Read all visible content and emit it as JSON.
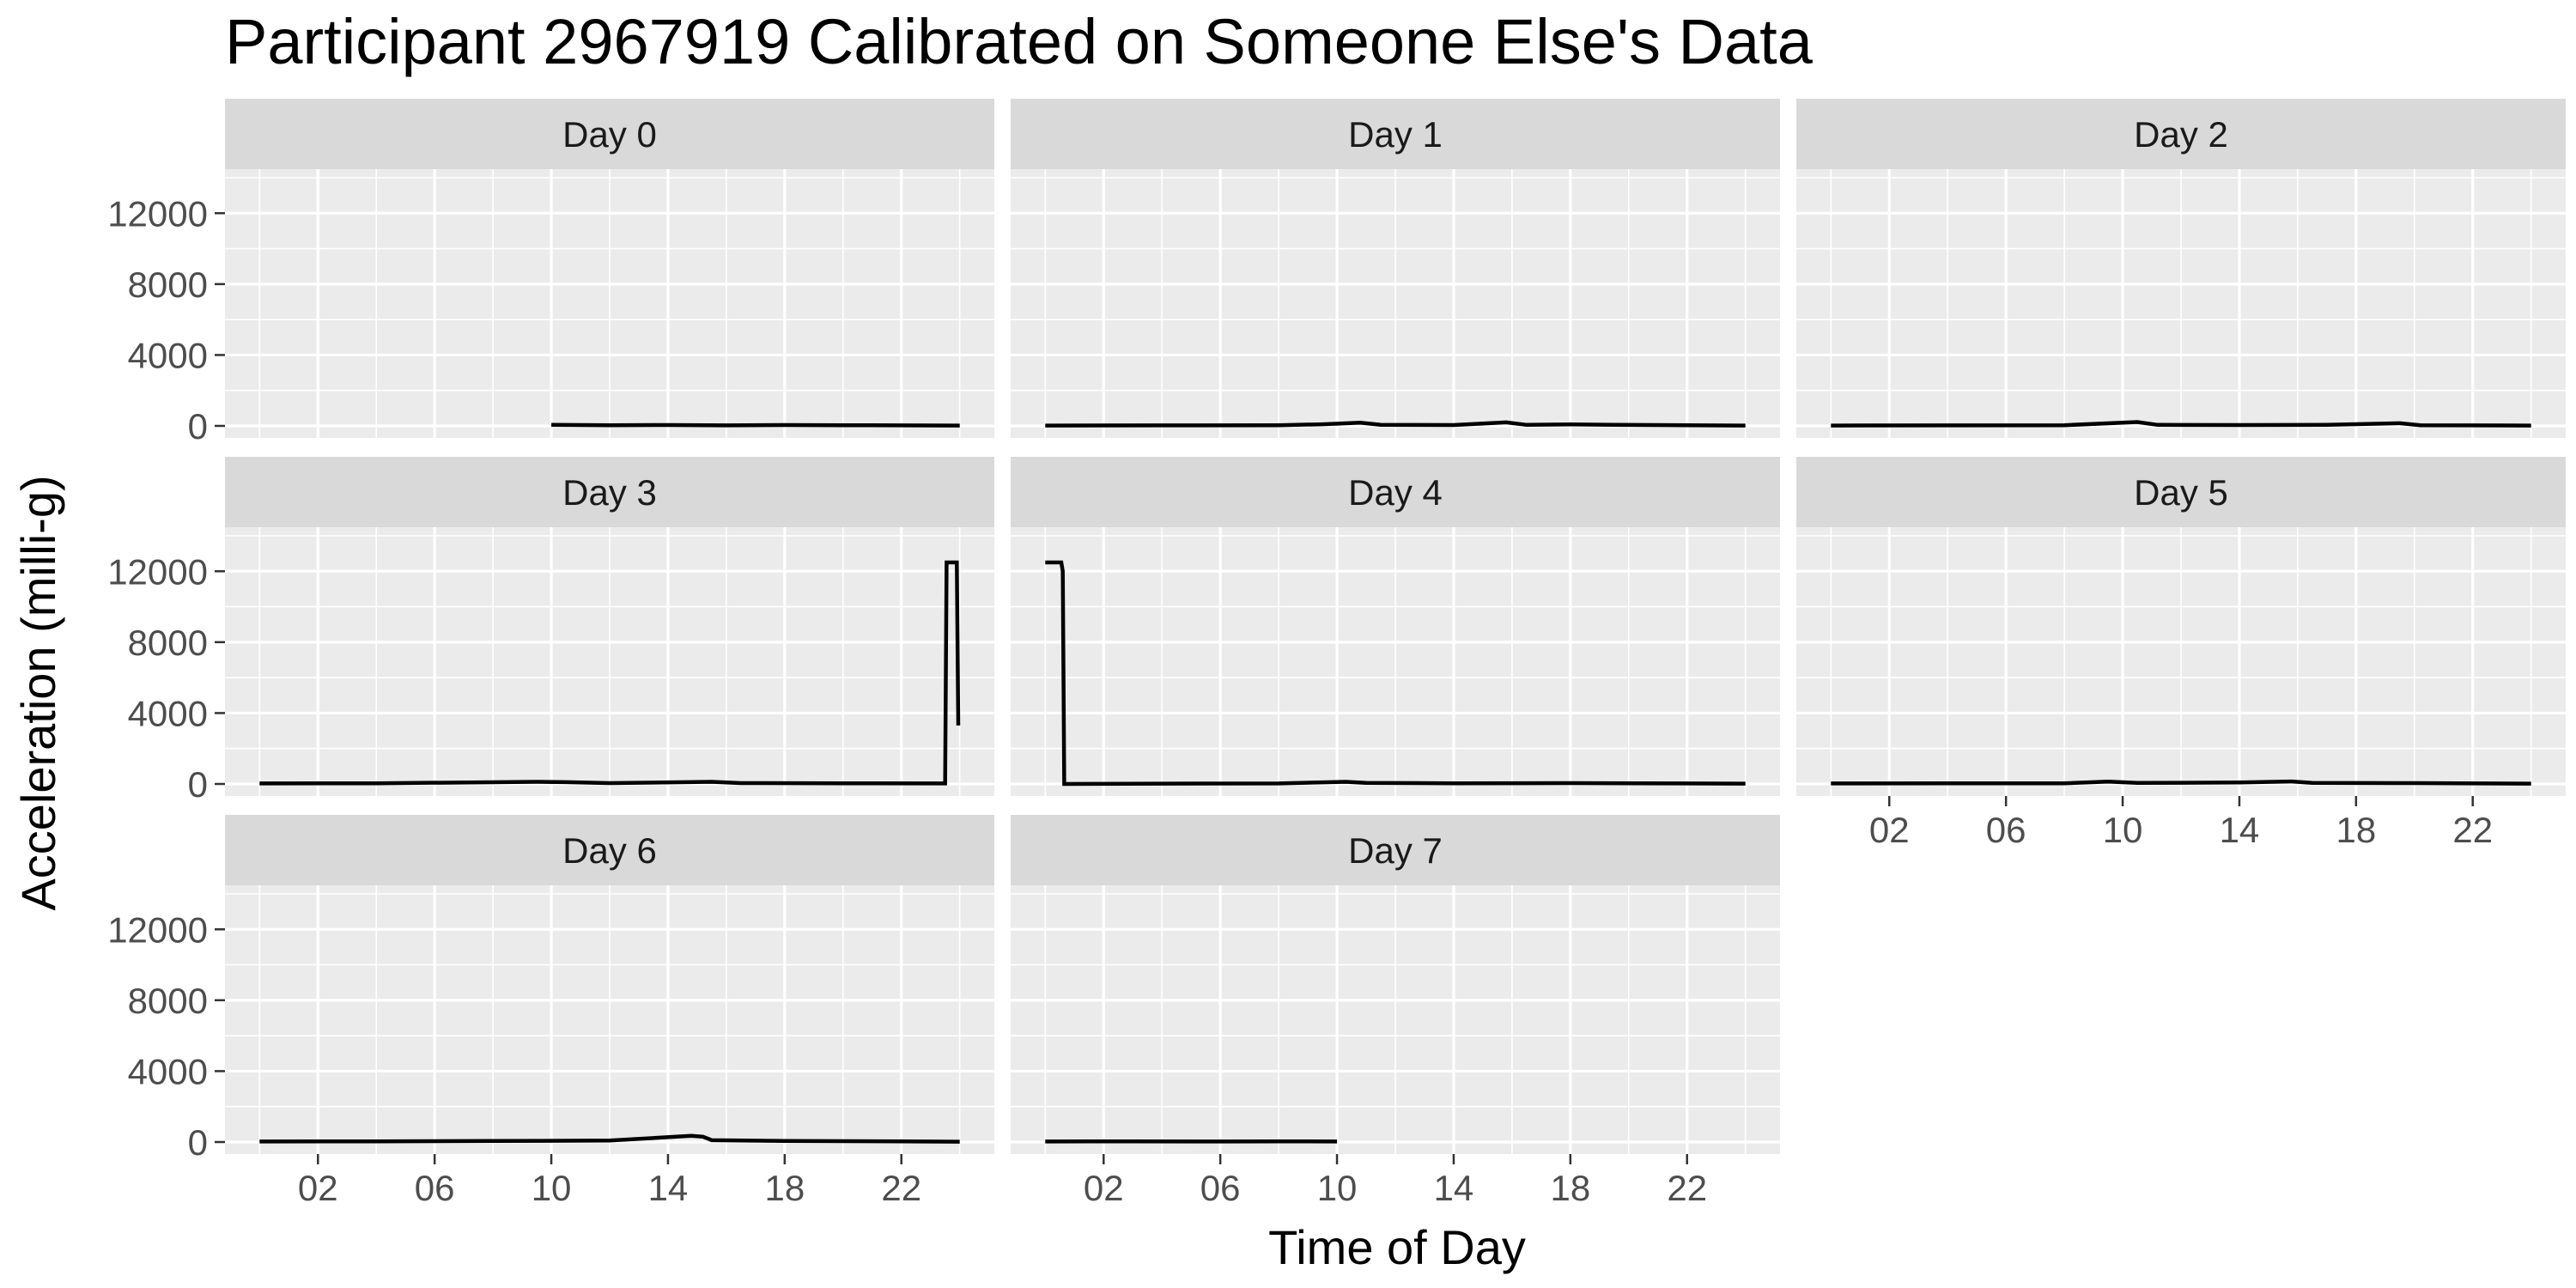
{
  "chart_data": {
    "type": "line",
    "title": "Participant 2967919 Calibrated on Someone Else's Data",
    "xlabel": "Time of Day",
    "ylabel": "Acceleration (milli-g)",
    "xlim": [
      0,
      24
    ],
    "ylim": [
      0,
      14000
    ],
    "x_unit": "hours",
    "x_ticks": [
      2,
      6,
      10,
      14,
      18,
      22
    ],
    "x_tick_labels": [
      "02",
      "06",
      "10",
      "14",
      "18",
      "22"
    ],
    "y_ticks": [
      0,
      4000,
      8000,
      12000
    ],
    "y_tick_labels": [
      "0",
      "4000",
      "8000",
      "12000"
    ],
    "grid": true,
    "facets": [
      {
        "label": "Day 0",
        "points": [
          [
            10.0,
            60
          ],
          [
            12,
            40
          ],
          [
            14,
            50
          ],
          [
            16,
            30
          ],
          [
            18,
            50
          ],
          [
            20,
            40
          ],
          [
            22,
            30
          ],
          [
            24,
            20
          ]
        ]
      },
      {
        "label": "Day 1",
        "points": [
          [
            0,
            20
          ],
          [
            4,
            30
          ],
          [
            8,
            40
          ],
          [
            9.5,
            90
          ],
          [
            10.8,
            180
          ],
          [
            11.5,
            60
          ],
          [
            14,
            50
          ],
          [
            15.8,
            200
          ],
          [
            16.5,
            60
          ],
          [
            18,
            80
          ],
          [
            19.5,
            60
          ],
          [
            22,
            40
          ],
          [
            24,
            20
          ]
        ]
      },
      {
        "label": "Day 2",
        "points": [
          [
            0,
            20
          ],
          [
            4,
            30
          ],
          [
            8,
            40
          ],
          [
            10.5,
            220
          ],
          [
            11.2,
            60
          ],
          [
            14,
            50
          ],
          [
            17,
            60
          ],
          [
            19.5,
            150
          ],
          [
            20.2,
            40
          ],
          [
            22,
            30
          ],
          [
            24,
            20
          ]
        ]
      },
      {
        "label": "Day 3",
        "points": [
          [
            0,
            30
          ],
          [
            4,
            40
          ],
          [
            9.5,
            120
          ],
          [
            10.5,
            100
          ],
          [
            12,
            50
          ],
          [
            15.5,
            120
          ],
          [
            16.5,
            50
          ],
          [
            20,
            40
          ],
          [
            23.5,
            30
          ],
          [
            23.55,
            12500
          ],
          [
            23.9,
            12500
          ],
          [
            23.95,
            3300
          ]
        ]
      },
      {
        "label": "Day 4",
        "points": [
          [
            0,
            12500
          ],
          [
            0.55,
            12500
          ],
          [
            0.6,
            12000
          ],
          [
            0.65,
            0
          ],
          [
            4,
            20
          ],
          [
            8,
            30
          ],
          [
            10.3,
            120
          ],
          [
            11,
            60
          ],
          [
            14,
            40
          ],
          [
            18,
            50
          ],
          [
            22,
            30
          ],
          [
            24,
            20
          ]
        ]
      },
      {
        "label": "Day 5",
        "points": [
          [
            0,
            30
          ],
          [
            4,
            40
          ],
          [
            8,
            40
          ],
          [
            9.5,
            130
          ],
          [
            10.5,
            60
          ],
          [
            14,
            80
          ],
          [
            15.8,
            140
          ],
          [
            16.5,
            60
          ],
          [
            20,
            50
          ],
          [
            24,
            20
          ]
        ]
      },
      {
        "label": "Day 6",
        "points": [
          [
            0,
            30
          ],
          [
            4,
            40
          ],
          [
            8,
            60
          ],
          [
            12,
            80
          ],
          [
            14.8,
            350
          ],
          [
            15.2,
            300
          ],
          [
            15.5,
            100
          ],
          [
            18,
            60
          ],
          [
            22,
            40
          ],
          [
            24,
            20
          ]
        ]
      },
      {
        "label": "Day 7",
        "points": [
          [
            0,
            30
          ],
          [
            3,
            40
          ],
          [
            6,
            30
          ],
          [
            8,
            40
          ],
          [
            10,
            30
          ]
        ]
      }
    ]
  }
}
